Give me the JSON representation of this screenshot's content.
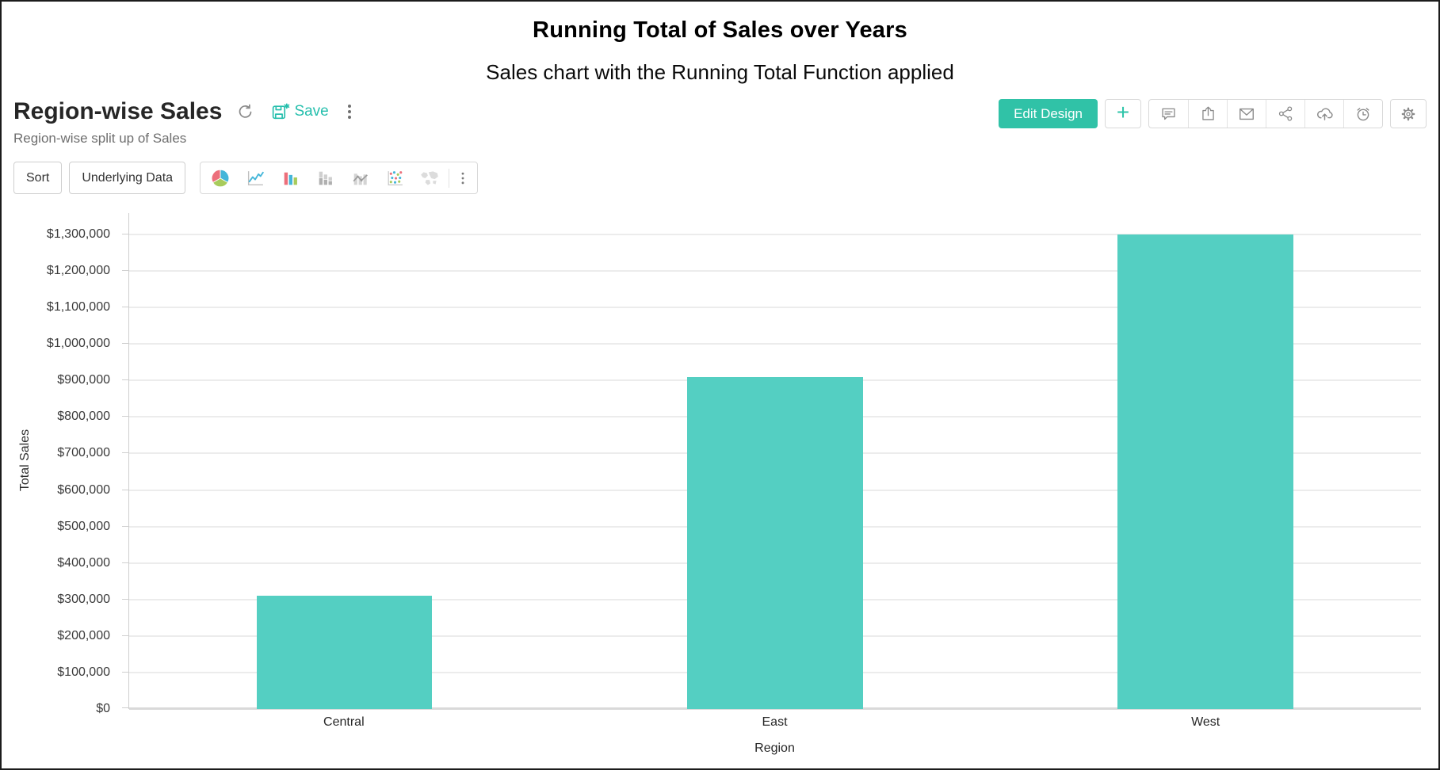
{
  "page": {
    "title": "Running Total of Sales over Years",
    "subtitle": "Sales chart with the Running Total Function applied"
  },
  "report": {
    "title": "Region-wise Sales",
    "description": "Region-wise split up of Sales",
    "save_label": "Save"
  },
  "header_actions": {
    "edit_design_label": "Edit Design",
    "add_label": "+",
    "icons": [
      "comment-icon",
      "export-icon",
      "email-icon",
      "share-icon",
      "cloud-upload-icon",
      "schedule-icon",
      "settings-icon"
    ]
  },
  "toolbar": {
    "sort_label": "Sort",
    "underlying_data_label": "Underlying Data",
    "chart_type_icons": [
      "pie-chart-icon",
      "line-chart-icon",
      "bar-chart-icon",
      "stacked-bar-icon",
      "combo-chart-icon",
      "scatter-chart-icon",
      "map-chart-icon",
      "more-icon"
    ]
  },
  "chart_data": {
    "type": "bar",
    "categories": [
      "Central",
      "East",
      "West"
    ],
    "values": [
      310000,
      910000,
      1300000
    ],
    "title": "",
    "xlabel": "Region",
    "ylabel": "Total Sales",
    "ylim": [
      0,
      1300000
    ],
    "ytick_step": 100000,
    "ytick_prefix": "$",
    "grid": true,
    "legend": "none",
    "bar_color": "#54cfc2"
  },
  "colors": {
    "accent_teal": "#30c2a7",
    "save_teal": "#26bfad",
    "bar_teal": "#54cfc2",
    "icon_gray": "#8a8a8a"
  }
}
